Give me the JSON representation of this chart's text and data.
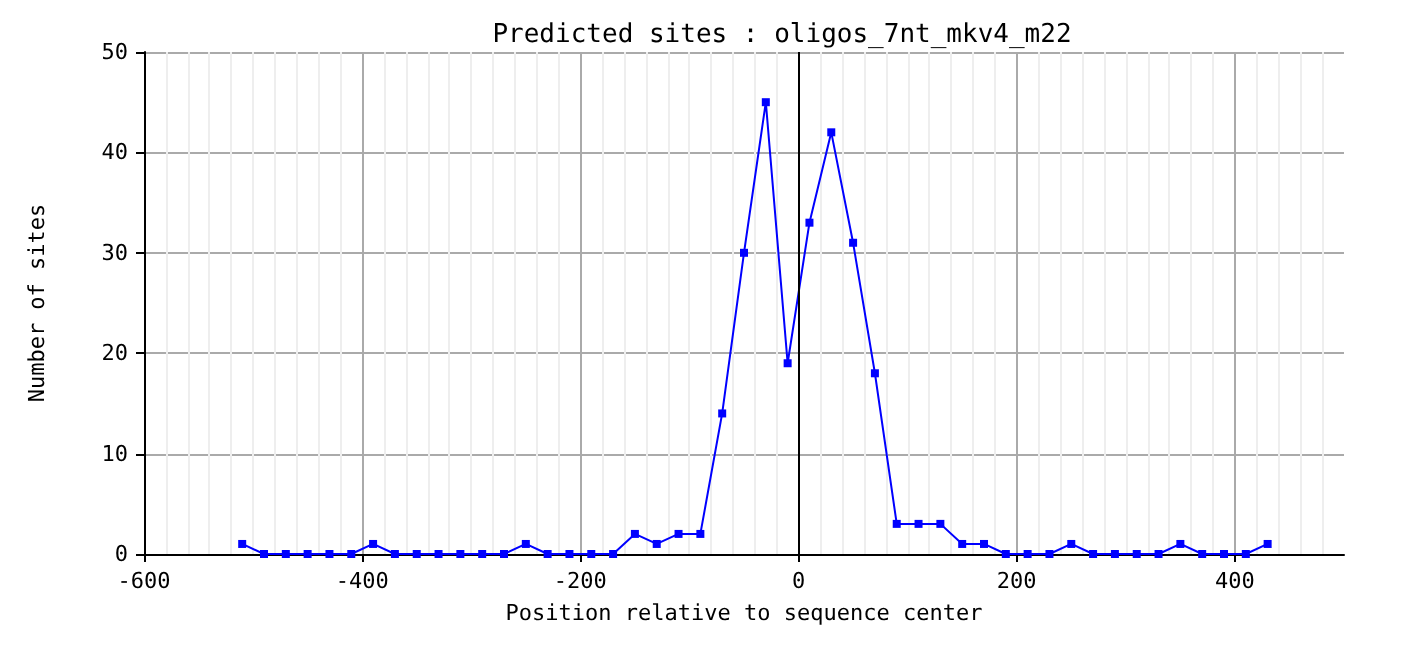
{
  "chart_data": {
    "type": "line",
    "title": "Predicted sites : oligos_7nt_mkv4_m22",
    "xlabel": "Position relative to sequence center",
    "ylabel": "Number of sites",
    "x": [
      -510,
      -490,
      -470,
      -450,
      -430,
      -410,
      -390,
      -370,
      -350,
      -330,
      -310,
      -290,
      -270,
      -250,
      -230,
      -210,
      -190,
      -170,
      -150,
      -130,
      -110,
      -90,
      -70,
      -50,
      -30,
      -10,
      10,
      30,
      50,
      70,
      90,
      110,
      130,
      150,
      170,
      190,
      210,
      230,
      250,
      270,
      290,
      310,
      330,
      350,
      370,
      390,
      410,
      430
    ],
    "series": [
      {
        "color": "#0000ff",
        "values": [
          1,
          0,
          0,
          0,
          0,
          0,
          1,
          0,
          0,
          0,
          0,
          0,
          0,
          1,
          0,
          0,
          0,
          0,
          2,
          1,
          2,
          2,
          14,
          30,
          45,
          19,
          33,
          42,
          31,
          18,
          3,
          3,
          3,
          1,
          1,
          0,
          0,
          0,
          1,
          0,
          0,
          0,
          0,
          1,
          0,
          0,
          0,
          1
        ]
      }
    ],
    "xlim": [
      -600,
      500
    ],
    "xticks": [
      -600,
      -400,
      -200,
      0,
      200,
      400
    ],
    "ylim": [
      0,
      50
    ],
    "yticks": [
      0,
      10,
      20,
      30,
      40,
      50
    ],
    "ref_lines": [
      {
        "axis": "x",
        "value": 0,
        "color": "#000000"
      }
    ],
    "grid": true,
    "marker": "square",
    "line_style": "solid"
  }
}
